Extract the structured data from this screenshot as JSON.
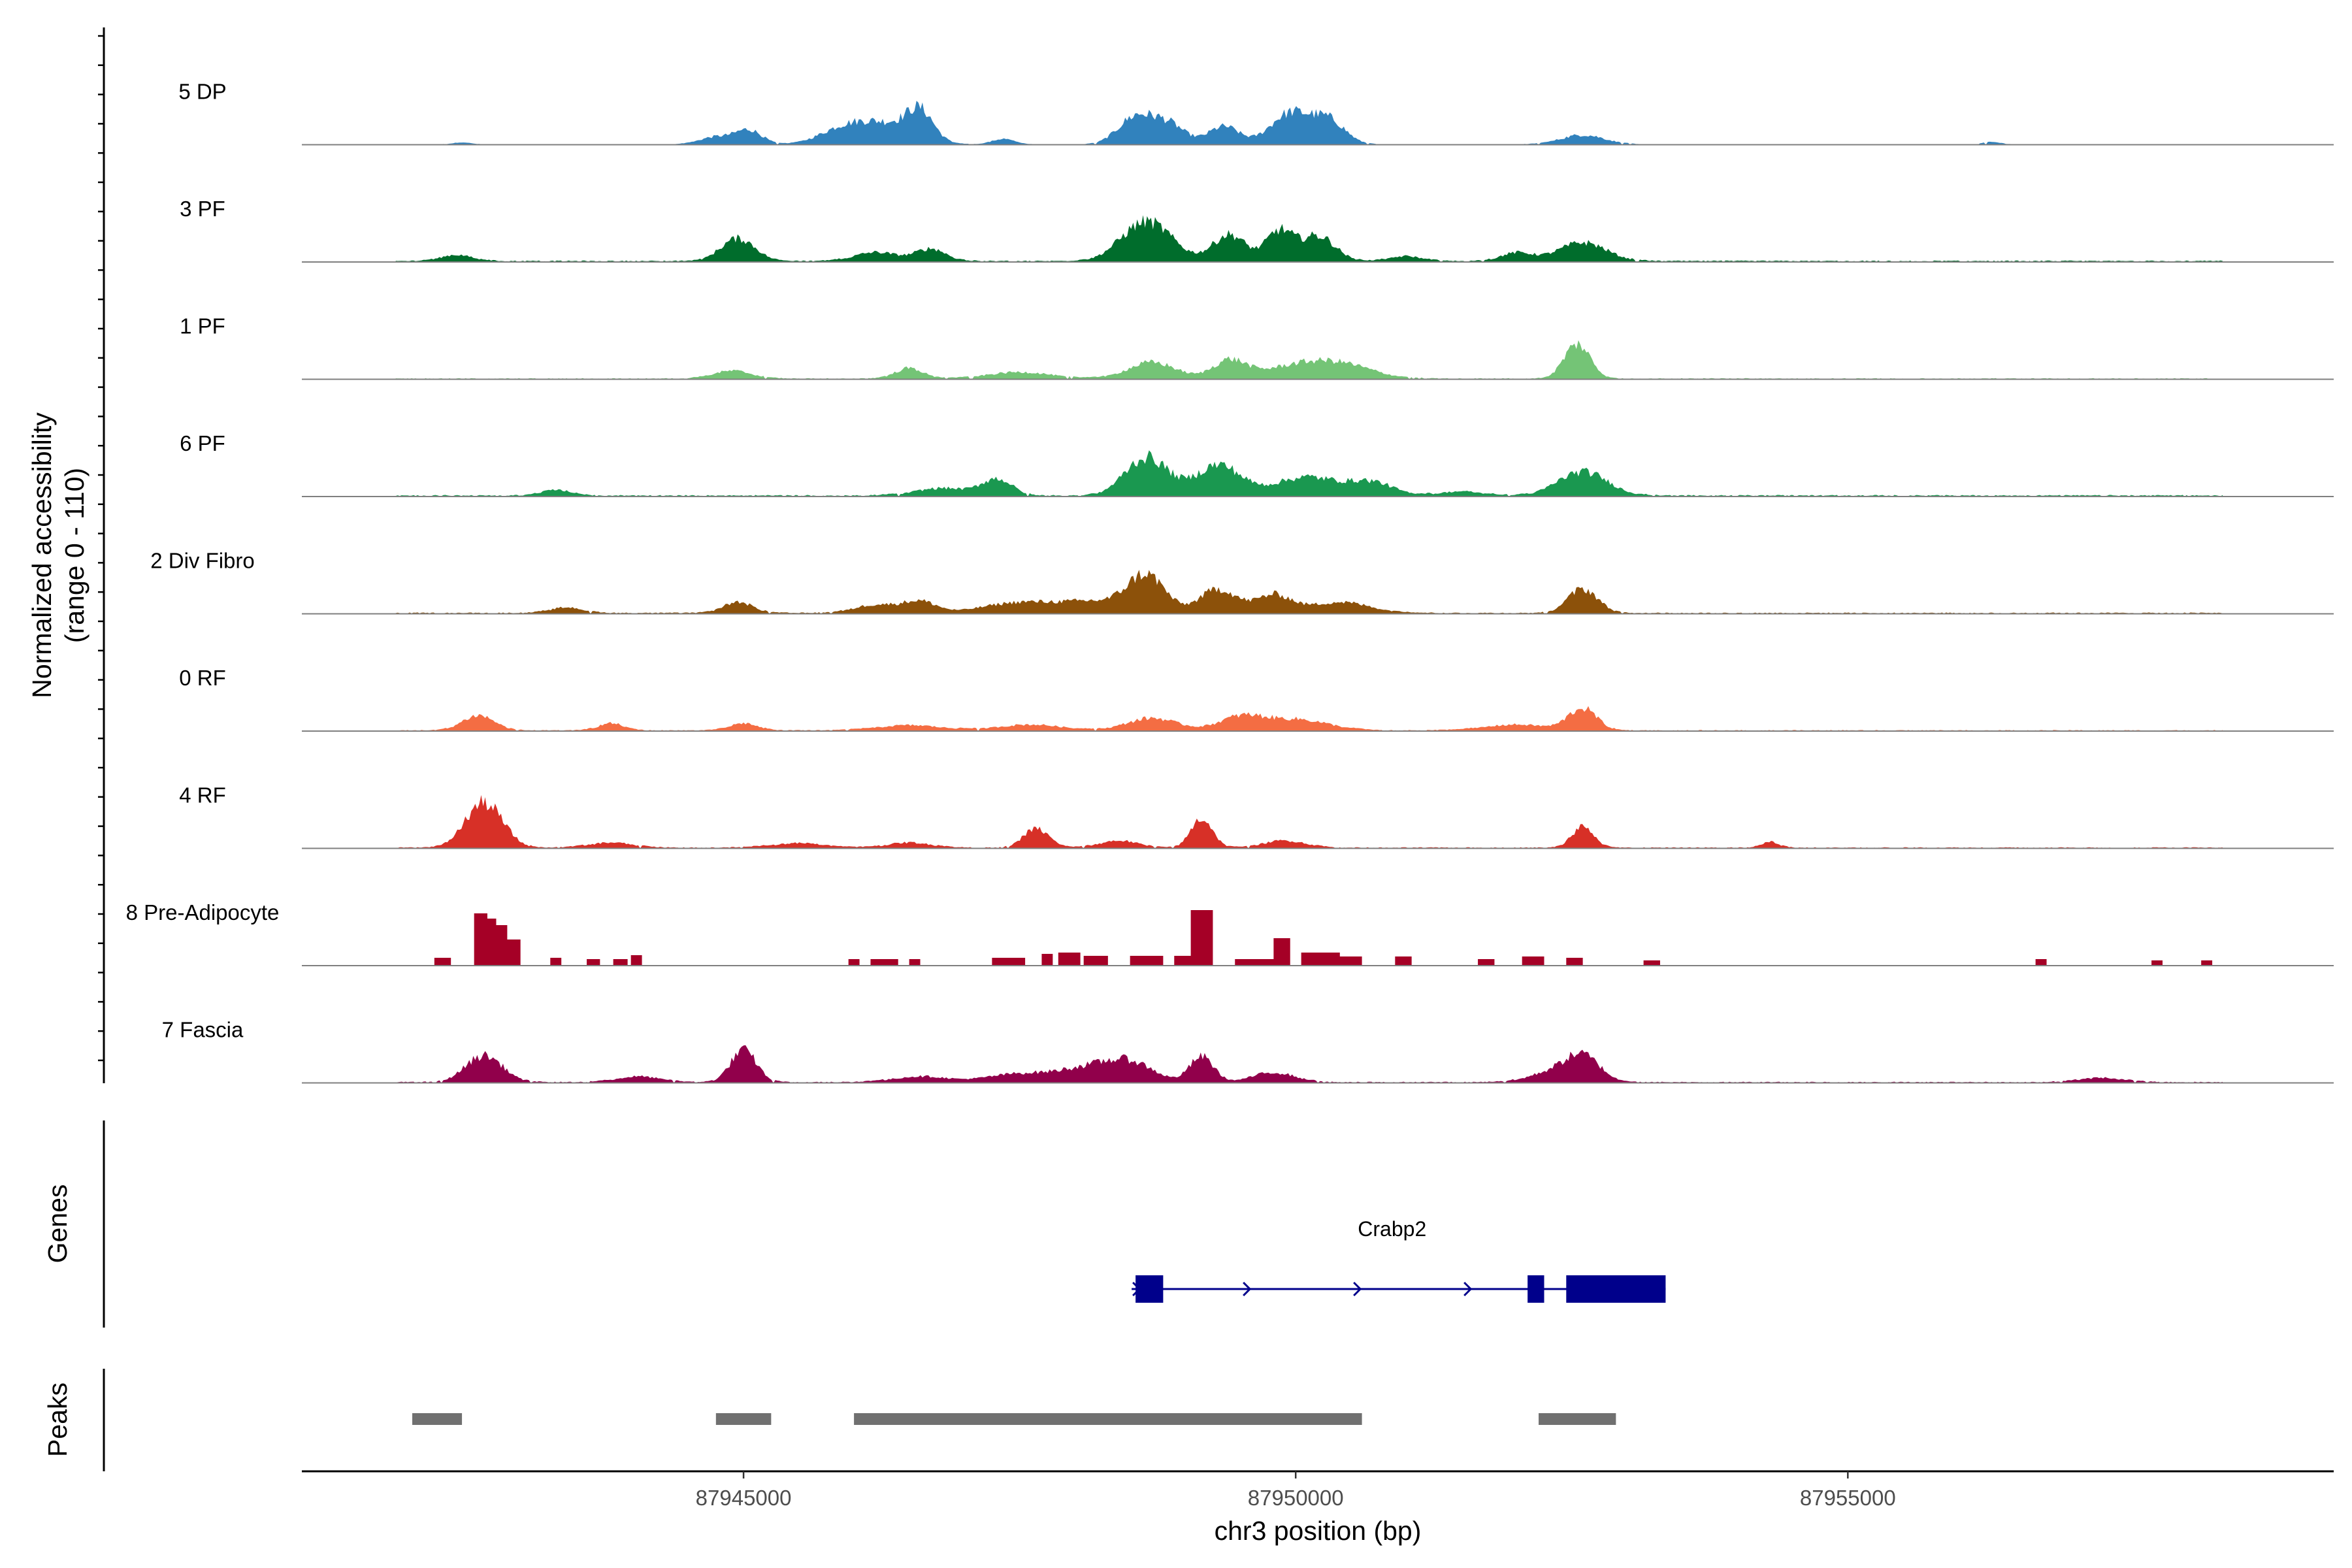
{
  "chart_data": {
    "type": "area",
    "chromosome": "chr3",
    "xlabel": "chr3 position (bp)",
    "xlim": [
      87941000,
      87959400
    ],
    "xticks": [
      87945000,
      87950000,
      87955000
    ],
    "xtick_labels": [
      "87945000",
      "87950000",
      "87955000"
    ],
    "ylabel_line1": "Normalized accessibility",
    "ylabel_line2": "(range 0 - 110)",
    "ylim": [
      0,
      110
    ],
    "data_start": 87941850,
    "data_end": 87958400,
    "tracks": [
      {
        "name": "5 DP",
        "color": "#3182bd",
        "noise": 0.6,
        "occupancy": 0.85,
        "peaks": [
          [
            87942450,
            3,
            80
          ],
          [
            87944750,
            12,
            150
          ],
          [
            87945050,
            22,
            120
          ],
          [
            87945900,
            22,
            220
          ],
          [
            87946300,
            30,
            260
          ],
          [
            87946600,
            42,
            120
          ],
          [
            87947350,
            9,
            100
          ],
          [
            87948550,
            42,
            160
          ],
          [
            87948850,
            30,
            150
          ],
          [
            87949350,
            28,
            140
          ],
          [
            87949950,
            48,
            180
          ],
          [
            87950300,
            36,
            150
          ],
          [
            87952600,
            15,
            200
          ],
          [
            87956300,
            4,
            80
          ]
        ]
      },
      {
        "name": "3 PF",
        "color": "#006d2c",
        "noise": 1.6,
        "occupancy": 0.95,
        "peaks": [
          [
            87942400,
            11,
            150
          ],
          [
            87944950,
            36,
            160
          ],
          [
            87946200,
            15,
            200
          ],
          [
            87946700,
            20,
            140
          ],
          [
            87948650,
            62,
            230
          ],
          [
            87949400,
            42,
            150
          ],
          [
            87949850,
            46,
            120
          ],
          [
            87950200,
            40,
            160
          ],
          [
            87951000,
            9,
            150
          ],
          [
            87952000,
            14,
            150
          ],
          [
            87952600,
            30,
            220
          ]
        ]
      },
      {
        "name": "1 PF",
        "color": "#74c476",
        "noise": 1.2,
        "occupancy": 0.9,
        "peaks": [
          [
            87944900,
            13,
            180
          ],
          [
            87946500,
            17,
            130
          ],
          [
            87947500,
            11,
            300
          ],
          [
            87948700,
            26,
            220
          ],
          [
            87949400,
            28,
            150
          ],
          [
            87950400,
            22,
            300
          ],
          [
            87949950,
            16,
            300
          ],
          [
            87952550,
            54,
            120
          ]
        ]
      },
      {
        "name": "6 PF",
        "color": "#1a9850",
        "noise": 1.8,
        "occupancy": 0.95,
        "peaks": [
          [
            87943300,
            11,
            130
          ],
          [
            87946800,
            13,
            250
          ],
          [
            87947300,
            26,
            140
          ],
          [
            87948650,
            60,
            200
          ],
          [
            87949300,
            48,
            200
          ],
          [
            87950100,
            30,
            300
          ],
          [
            87950700,
            20,
            200
          ],
          [
            87952600,
            38,
            230
          ],
          [
            87951500,
            8,
            200
          ]
        ]
      },
      {
        "name": "2 Div Fibro",
        "color": "#8c510a",
        "noise": 1.5,
        "occupancy": 0.95,
        "peaks": [
          [
            87943400,
            10,
            150
          ],
          [
            87944950,
            18,
            140
          ],
          [
            87946200,
            14,
            200
          ],
          [
            87946600,
            18,
            150
          ],
          [
            87947500,
            17,
            350
          ],
          [
            87948200,
            17,
            300
          ],
          [
            87948650,
            56,
            170
          ],
          [
            87949300,
            38,
            170
          ],
          [
            87949800,
            28,
            160
          ],
          [
            87950400,
            18,
            280
          ],
          [
            87952600,
            38,
            140
          ]
        ]
      },
      {
        "name": "0 RF",
        "color": "#f46d43",
        "noise": 1.2,
        "occupancy": 0.95,
        "peaks": [
          [
            87942600,
            24,
            150
          ],
          [
            87943800,
            12,
            120
          ],
          [
            87945000,
            12,
            130
          ],
          [
            87946500,
            9,
            300
          ],
          [
            87947600,
            10,
            300
          ],
          [
            87948700,
            20,
            230
          ],
          [
            87949500,
            20,
            200
          ],
          [
            87950000,
            18,
            300
          ],
          [
            87952000,
            10,
            300
          ],
          [
            87952600,
            34,
            130
          ]
        ]
      },
      {
        "name": "4 RF",
        "color": "#d73027",
        "noise": 1.3,
        "occupancy": 0.9,
        "peaks": [
          [
            87942650,
            70,
            170
          ],
          [
            87943800,
            9,
            200
          ],
          [
            87945500,
            8,
            250
          ],
          [
            87946500,
            9,
            200
          ],
          [
            87947650,
            30,
            120
          ],
          [
            87948400,
            12,
            180
          ],
          [
            87949150,
            46,
            100
          ],
          [
            87949900,
            12,
            200
          ],
          [
            87952600,
            34,
            100
          ],
          [
            87954300,
            10,
            80
          ]
        ]
      },
      {
        "name": "8 Pre-Adipocyte",
        "color": "#a50026",
        "noise": 0,
        "occupancy": 1,
        "blocks": [
          [
            87942200,
            87942350,
            12
          ],
          [
            87942560,
            87942680,
            80
          ],
          [
            87942680,
            87942760,
            72
          ],
          [
            87942760,
            87942860,
            62
          ],
          [
            87942860,
            87942980,
            40
          ],
          [
            87943250,
            87943350,
            12
          ],
          [
            87943580,
            87943700,
            10
          ],
          [
            87943820,
            87943950,
            10
          ],
          [
            87943980,
            87944080,
            16
          ],
          [
            87945950,
            87946050,
            10
          ],
          [
            87946150,
            87946400,
            10
          ],
          [
            87946500,
            87946600,
            10
          ],
          [
            87947250,
            87947550,
            12
          ],
          [
            87947700,
            87947800,
            18
          ],
          [
            87947850,
            87948050,
            20
          ],
          [
            87948080,
            87948300,
            15
          ],
          [
            87948500,
            87948800,
            15
          ],
          [
            87948900,
            87949050,
            15
          ],
          [
            87949050,
            87949250,
            85
          ],
          [
            87949450,
            87949800,
            10
          ],
          [
            87949800,
            87949950,
            42
          ],
          [
            87950050,
            87950400,
            20
          ],
          [
            87950400,
            87950600,
            14
          ],
          [
            87950900,
            87951050,
            14
          ],
          [
            87951650,
            87951800,
            10
          ],
          [
            87952050,
            87952250,
            14
          ],
          [
            87952450,
            87952600,
            12
          ],
          [
            87953150,
            87953300,
            8
          ],
          [
            87956700,
            87956800,
            10
          ],
          [
            87957750,
            87957850,
            8
          ],
          [
            87958200,
            87958300,
            8
          ]
        ]
      },
      {
        "name": "7 Fascia",
        "color": "#91004b",
        "noise": 1.4,
        "occupancy": 0.9,
        "peaks": [
          [
            87942650,
            42,
            170
          ],
          [
            87944050,
            10,
            200
          ],
          [
            87945000,
            50,
            120
          ],
          [
            87946600,
            10,
            250
          ],
          [
            87947500,
            14,
            300
          ],
          [
            87948100,
            20,
            250
          ],
          [
            87948500,
            30,
            220
          ],
          [
            87949150,
            40,
            110
          ],
          [
            87949800,
            16,
            200
          ],
          [
            87952300,
            15,
            200
          ],
          [
            87952600,
            40,
            160
          ],
          [
            87957300,
            8,
            200
          ]
        ]
      }
    ],
    "genes": [
      {
        "name": "Crabp2",
        "strand": "+",
        "start": 87948550,
        "end": 87953350,
        "exons": [
          [
            87948550,
            87948800
          ],
          [
            87952100,
            87952250
          ],
          [
            87952450,
            87953350
          ]
        ]
      }
    ],
    "genes_label": "Genes",
    "peaks_label": "Peaks",
    "peak_regions": [
      [
        87942000,
        87942450
      ],
      [
        87944750,
        87945250
      ],
      [
        87946000,
        87950600
      ],
      [
        87952200,
        87952900
      ]
    ]
  }
}
